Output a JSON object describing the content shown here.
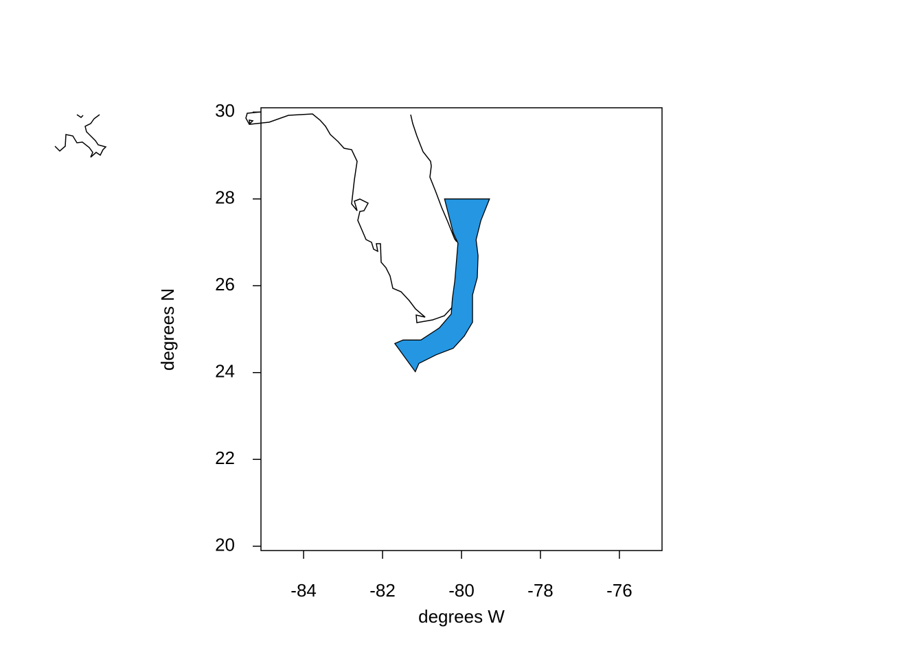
{
  "chart_data": {
    "type": "map",
    "xlabel": "degrees W",
    "ylabel": "degrees N",
    "xlim": [
      -85.08,
      -74.92
    ],
    "ylim": [
      19.9,
      30.1
    ],
    "xticks": [
      -84,
      -82,
      -80,
      -78,
      -76
    ],
    "yticks": [
      20,
      22,
      24,
      26,
      28,
      30
    ],
    "regions": [
      {
        "color": "#2596e2",
        "lon": [
          -80.43,
          -79.29,
          -79.51,
          -79.63,
          -79.58,
          -79.6,
          -79.72,
          -79.72,
          -79.93,
          -80.21,
          -80.64,
          -81.08,
          -81.17,
          -81.69,
          -81.48,
          -81.03,
          -80.56,
          -80.26,
          -80.23,
          -80.17,
          -80.09,
          -80.21
        ],
        "lat": [
          28.0,
          28.0,
          27.5,
          27.06,
          26.69,
          26.19,
          25.79,
          25.16,
          24.84,
          24.56,
          24.41,
          24.21,
          24.02,
          24.67,
          24.75,
          24.75,
          25.03,
          25.35,
          25.71,
          26.11,
          26.98,
          27.22
        ]
      }
    ]
  }
}
